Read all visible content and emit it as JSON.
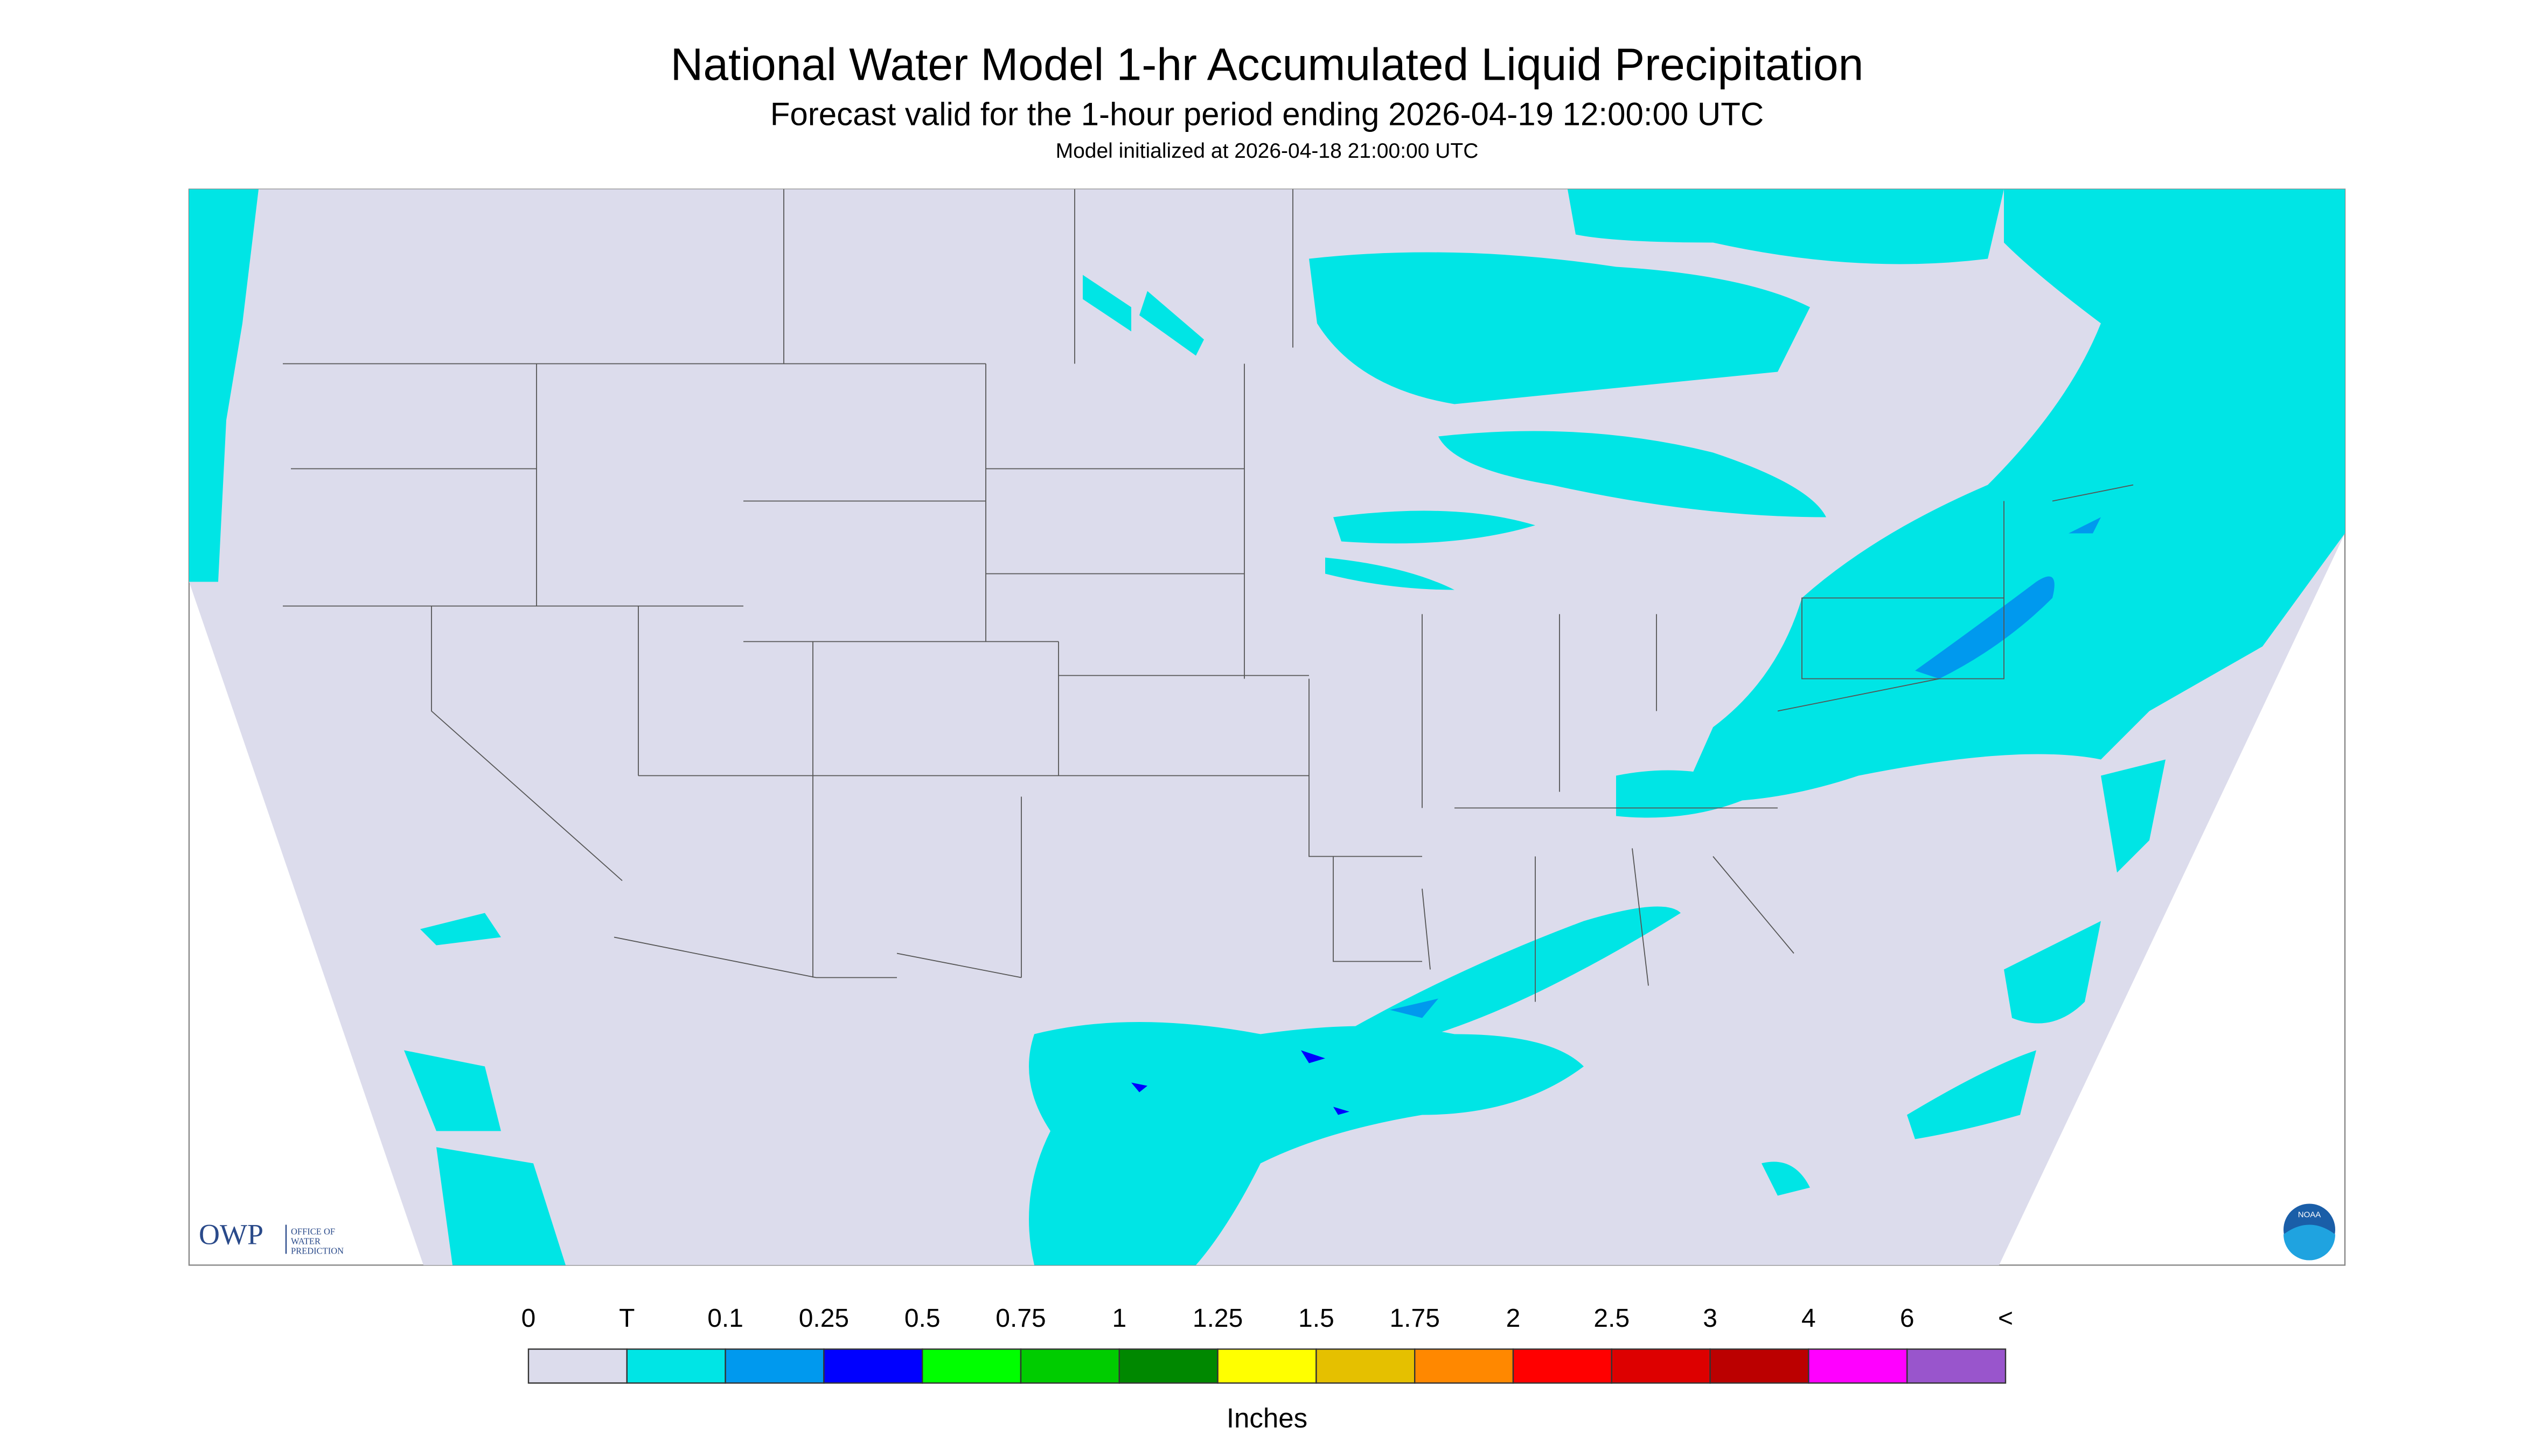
{
  "header": {
    "title": "National Water Model 1-hr Accumulated Liquid Precipitation",
    "subtitle": "Forecast valid for the 1-hour period ending 2026-04-19 12:00:00 UTC",
    "init": "Model initialized at 2026-04-18 21:00:00 UTC"
  },
  "logo": {
    "short": "OWP",
    "line1": "OFFICE OF",
    "line2": "WATER",
    "line3": "PREDICTION",
    "badge": "NOAA"
  },
  "legend": {
    "labels": [
      "0",
      "T",
      "0.1",
      "0.25",
      "0.5",
      "0.75",
      "1",
      "1.25",
      "1.5",
      "1.75",
      "2",
      "2.5",
      "3",
      "4",
      "6",
      "<"
    ],
    "colors": [
      "#dcdcec",
      "#00e5e5",
      "#0099ee",
      "#0000ff",
      "#00ff00",
      "#00cc00",
      "#008800",
      "#ffff00",
      "#e5c000",
      "#ff8800",
      "#ff0000",
      "#dd0000",
      "#bb0000",
      "#ff00ff",
      "#9955cc"
    ],
    "unit": "Inches"
  }
}
